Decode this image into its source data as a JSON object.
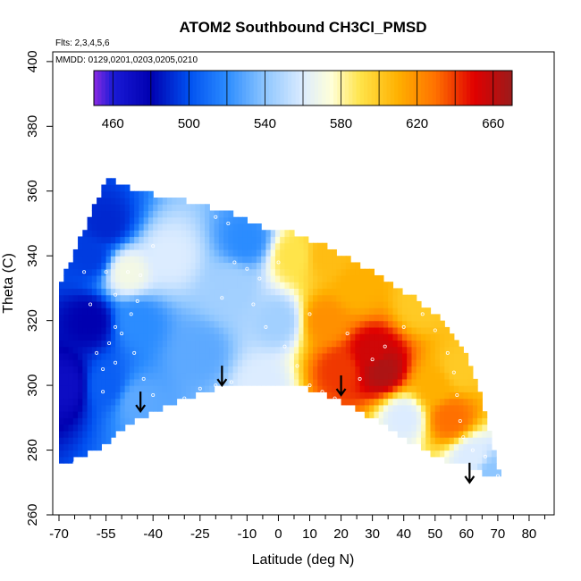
{
  "chart_data": {
    "type": "heatmap",
    "title": "ATOM2 Southbound CH3Cl_PMSD",
    "flights_label": "Flts: 2,3,4,5,6",
    "dates_label": "MMDD: 0129,0201,0203,0205,0210",
    "xlabel": "Latitude (deg N)",
    "ylabel": "Theta (C)",
    "xlim": [
      -72,
      88
    ],
    "ylim": [
      260,
      403
    ],
    "x_ticks": [
      -70,
      -55,
      -40,
      -25,
      -10,
      0,
      10,
      20,
      30,
      40,
      50,
      60,
      70,
      80
    ],
    "x_minor_step": 5,
    "y_ticks": [
      260,
      280,
      300,
      320,
      340,
      360,
      380,
      400
    ],
    "colorbar": {
      "range": [
        450,
        670
      ],
      "ticks": [
        460,
        500,
        540,
        580,
        620,
        660
      ],
      "boundaries": [
        450,
        460,
        480,
        500,
        520,
        540,
        560,
        580,
        600,
        620,
        640,
        660,
        670
      ],
      "stops": [
        {
          "v": 450,
          "color": "#8a2be2"
        },
        {
          "v": 460,
          "color": "#1a1ad6"
        },
        {
          "v": 480,
          "color": "#0000b0"
        },
        {
          "v": 500,
          "color": "#0050f0"
        },
        {
          "v": 520,
          "color": "#2b8cff"
        },
        {
          "v": 540,
          "color": "#8ec6ff"
        },
        {
          "v": 560,
          "color": "#dcecff"
        },
        {
          "v": 575,
          "color": "#ffffd8"
        },
        {
          "v": 590,
          "color": "#ffe44a"
        },
        {
          "v": 610,
          "color": "#ffb000"
        },
        {
          "v": 630,
          "color": "#ff7000"
        },
        {
          "v": 650,
          "color": "#e00000"
        },
        {
          "v": 670,
          "color": "#9c1b1b"
        }
      ]
    },
    "domain_bottom": [
      [
        -70,
        275
      ],
      [
        -55,
        282
      ],
      [
        -48,
        288
      ],
      [
        -40,
        292
      ],
      [
        -30,
        296
      ],
      [
        -20,
        299
      ],
      [
        -10,
        301
      ],
      [
        0,
        301
      ],
      [
        10,
        299
      ],
      [
        20,
        295
      ],
      [
        30,
        290
      ],
      [
        40,
        284
      ],
      [
        50,
        278
      ],
      [
        60,
        275
      ],
      [
        71,
        271
      ]
    ],
    "domain_top": [
      [
        -70,
        330
      ],
      [
        -62,
        348
      ],
      [
        -55,
        364
      ],
      [
        -45,
        360
      ],
      [
        -35,
        358
      ],
      [
        -25,
        356
      ],
      [
        -15,
        353
      ],
      [
        -5,
        349
      ],
      [
        5,
        347
      ],
      [
        15,
        343
      ],
      [
        25,
        338
      ],
      [
        35,
        332
      ],
      [
        45,
        326
      ],
      [
        52,
        320
      ],
      [
        58,
        313
      ],
      [
        62,
        305
      ],
      [
        65,
        296
      ],
      [
        71,
        271
      ]
    ],
    "field_anchors": [
      {
        "lat": -68,
        "theta": 300,
        "value": 470
      },
      {
        "lat": -60,
        "theta": 320,
        "value": 480
      },
      {
        "lat": -55,
        "theta": 350,
        "value": 490
      },
      {
        "lat": -60,
        "theta": 340,
        "value": 495
      },
      {
        "lat": -55,
        "theta": 300,
        "value": 505
      },
      {
        "lat": -45,
        "theta": 295,
        "value": 530
      },
      {
        "lat": -45,
        "theta": 320,
        "value": 520
      },
      {
        "lat": -48,
        "theta": 335,
        "value": 570
      },
      {
        "lat": -35,
        "theta": 340,
        "value": 560
      },
      {
        "lat": -25,
        "theta": 310,
        "value": 530
      },
      {
        "lat": -15,
        "theta": 330,
        "value": 545
      },
      {
        "lat": -10,
        "theta": 345,
        "value": 520
      },
      {
        "lat": -5,
        "theta": 300,
        "value": 560
      },
      {
        "lat": 0,
        "theta": 320,
        "value": 545
      },
      {
        "lat": 5,
        "theta": 340,
        "value": 590
      },
      {
        "lat": 15,
        "theta": 340,
        "value": 605
      },
      {
        "lat": 15,
        "theta": 320,
        "value": 620
      },
      {
        "lat": 20,
        "theta": 305,
        "value": 640
      },
      {
        "lat": 25,
        "theta": 330,
        "value": 610
      },
      {
        "lat": 30,
        "theta": 310,
        "value": 655
      },
      {
        "lat": 33,
        "theta": 305,
        "value": 665
      },
      {
        "lat": 45,
        "theta": 325,
        "value": 600
      },
      {
        "lat": 40,
        "theta": 290,
        "value": 560
      },
      {
        "lat": 50,
        "theta": 300,
        "value": 610
      },
      {
        "lat": 55,
        "theta": 290,
        "value": 630
      },
      {
        "lat": 58,
        "theta": 305,
        "value": 600
      },
      {
        "lat": 62,
        "theta": 278,
        "value": 560
      },
      {
        "lat": 68,
        "theta": 273,
        "value": 540
      }
    ],
    "sample_points": [
      [
        -58,
        310
      ],
      [
        -56,
        305
      ],
      [
        -54,
        313
      ],
      [
        -52,
        307
      ],
      [
        -50,
        316
      ],
      [
        -52,
        328
      ],
      [
        -55,
        335
      ],
      [
        -48,
        335
      ],
      [
        -45,
        326
      ],
      [
        -46,
        310
      ],
      [
        -43,
        302
      ],
      [
        -40,
        297
      ],
      [
        -35,
        293
      ],
      [
        -30,
        296
      ],
      [
        -25,
        299
      ],
      [
        -20,
        300
      ],
      [
        -15,
        301
      ],
      [
        -14,
        338
      ],
      [
        -10,
        336
      ],
      [
        -6,
        333
      ],
      [
        -40,
        343
      ],
      [
        -20,
        352
      ],
      [
        -16,
        350
      ],
      [
        -18,
        327
      ],
      [
        -8,
        325
      ],
      [
        -4,
        318
      ],
      [
        2,
        312
      ],
      [
        6,
        306
      ],
      [
        10,
        300
      ],
      [
        14,
        298
      ],
      [
        18,
        296
      ],
      [
        20,
        293
      ],
      [
        26,
        302
      ],
      [
        30,
        308
      ],
      [
        34,
        312
      ],
      [
        40,
        318
      ],
      [
        46,
        322
      ],
      [
        50,
        317
      ],
      [
        54,
        310
      ],
      [
        56,
        304
      ],
      [
        57,
        297
      ],
      [
        58,
        289
      ],
      [
        59,
        284
      ],
      [
        62,
        280
      ],
      [
        66,
        278
      ],
      [
        70,
        272
      ],
      [
        -62,
        335
      ],
      [
        -60,
        325
      ],
      [
        -56,
        298
      ],
      [
        -65,
        276
      ],
      [
        -52,
        318
      ],
      [
        -47,
        322
      ],
      [
        -44,
        334
      ],
      [
        22,
        316
      ],
      [
        10,
        322
      ],
      [
        0,
        338
      ],
      [
        4,
        350
      ]
    ],
    "arrows": [
      {
        "lat": -44,
        "theta": 292
      },
      {
        "lat": -18,
        "theta": 300
      },
      {
        "lat": 20,
        "theta": 297
      },
      {
        "lat": 61,
        "theta": 270
      }
    ]
  }
}
